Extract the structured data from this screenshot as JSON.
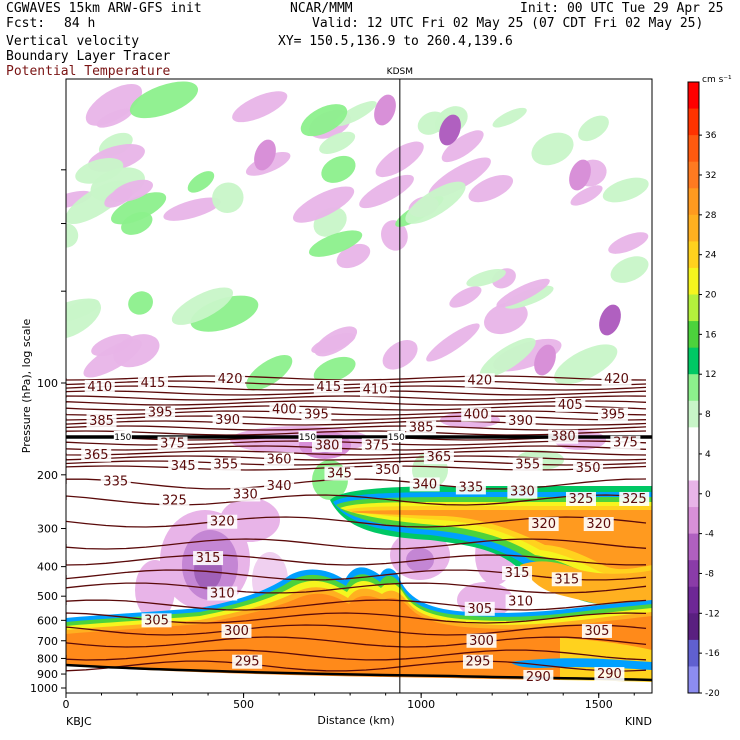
{
  "header": {
    "model": "CGWAVES 15km ARW-GFS init",
    "org": "NCAR/MMM",
    "init": "Init: 00 UTC Tue 29 Apr 25",
    "fcst_label": "Fcst:",
    "fcst_value": "84 h",
    "valid": "Valid: 12 UTC Fri 02 May 25 (07 CDT Fri 02 May 25)",
    "field1": "Vertical velocity",
    "field2": "Boundary Layer Tracer",
    "field3": "Potential Temperature",
    "xy": "XY= 150.5,136.9 to 260.4,139.6"
  },
  "colors": {
    "theta_contour": "#5a0a0a",
    "field3_text": "#7a1414",
    "bg": "#ffffff"
  },
  "chart_data": {
    "type": "heatmap",
    "marker_label": "KDSM",
    "marker_x_km": 940,
    "xlabel": "Distance (km)",
    "ylabel": "Pressure (hPa), log scale",
    "x_ticks": [
      0,
      500,
      1000,
      1500
    ],
    "x_tick_labels": [
      "0",
      "500",
      "1000",
      "1500"
    ],
    "x_range": [
      0,
      1650
    ],
    "y_ticks": [
      100,
      200,
      300,
      400,
      500,
      600,
      700,
      800,
      900,
      1000
    ],
    "y_tick_labels": [
      "100",
      "200",
      "300",
      "400",
      "500",
      "600",
      "700",
      "800",
      "900",
      "1000"
    ],
    "y_scale": "log",
    "left_station": "KBJC",
    "right_station": "KIND",
    "colorbar": {
      "units": "cm s⁻¹",
      "levels": [
        36,
        32,
        28,
        24,
        20,
        16,
        12,
        8,
        4,
        0,
        -4,
        -8,
        -12,
        -16,
        -20
      ],
      "colors": [
        "#ff0000",
        "#ff3300",
        "#ff5a10",
        "#ff7a20",
        "#ff9a1f",
        "#ffb020",
        "#ffd21e",
        "#f5f51e",
        "#b4f03c",
        "#4cd23c",
        "#00c864",
        "#8cf08c",
        "#c8f5c8",
        "#ffffff",
        "#ffffff",
        "#e8b4e8",
        "#d890d8",
        "#b060c0",
        "#8a3ca8",
        "#6e2896",
        "#5a2080",
        "#6060d0",
        "#8c8cf0"
      ]
    },
    "theta_labels": [
      {
        "v": "410",
        "x": 95,
        "p": 103
      },
      {
        "v": "415",
        "x": 245,
        "p": 100
      },
      {
        "v": "420",
        "x": 462,
        "p": 97
      },
      {
        "v": "415",
        "x": 740,
        "p": 103
      },
      {
        "v": "410",
        "x": 870,
        "p": 105
      },
      {
        "v": "420",
        "x": 1165,
        "p": 98
      },
      {
        "v": "420",
        "x": 1550,
        "p": 97
      },
      {
        "v": "385",
        "x": 100,
        "p": 133
      },
      {
        "v": "395",
        "x": 265,
        "p": 125
      },
      {
        "v": "400",
        "x": 615,
        "p": 122
      },
      {
        "v": "390",
        "x": 455,
        "p": 132
      },
      {
        "v": "395",
        "x": 705,
        "p": 127
      },
      {
        "v": "385",
        "x": 1000,
        "p": 140
      },
      {
        "v": "400",
        "x": 1155,
        "p": 127
      },
      {
        "v": "390",
        "x": 1280,
        "p": 133
      },
      {
        "v": "405",
        "x": 1420,
        "p": 118
      },
      {
        "v": "395",
        "x": 1540,
        "p": 127
      },
      {
        "v": "380",
        "x": 1400,
        "p": 150
      },
      {
        "v": "375",
        "x": 1575,
        "p": 157
      },
      {
        "v": "375",
        "x": 300,
        "p": 158
      },
      {
        "v": "380",
        "x": 735,
        "p": 160
      },
      {
        "v": "375",
        "x": 875,
        "p": 160
      },
      {
        "v": "365",
        "x": 85,
        "p": 172
      },
      {
        "v": "360",
        "x": 600,
        "p": 178
      },
      {
        "v": "365",
        "x": 1050,
        "p": 175
      },
      {
        "v": "355",
        "x": 1300,
        "p": 185
      },
      {
        "v": "350",
        "x": 1470,
        "p": 190
      },
      {
        "v": "345",
        "x": 330,
        "p": 187
      },
      {
        "v": "355",
        "x": 450,
        "p": 185
      },
      {
        "v": "345",
        "x": 770,
        "p": 198
      },
      {
        "v": "350",
        "x": 905,
        "p": 193
      },
      {
        "v": "335",
        "x": 140,
        "p": 210
      },
      {
        "v": "340",
        "x": 600,
        "p": 218
      },
      {
        "v": "340",
        "x": 1010,
        "p": 215
      },
      {
        "v": "335",
        "x": 1140,
        "p": 220
      },
      {
        "v": "330",
        "x": 505,
        "p": 232
      },
      {
        "v": "330",
        "x": 1285,
        "p": 227
      },
      {
        "v": "325",
        "x": 305,
        "p": 243
      },
      {
        "v": "325",
        "x": 1450,
        "p": 240
      },
      {
        "v": "325",
        "x": 1600,
        "p": 240
      },
      {
        "v": "320",
        "x": 440,
        "p": 285
      },
      {
        "v": "320",
        "x": 1345,
        "p": 290
      },
      {
        "v": "320",
        "x": 1500,
        "p": 290
      },
      {
        "v": "315",
        "x": 400,
        "p": 375
      },
      {
        "v": "315",
        "x": 1270,
        "p": 420
      },
      {
        "v": "315",
        "x": 1410,
        "p": 440
      },
      {
        "v": "310",
        "x": 440,
        "p": 490
      },
      {
        "v": "310",
        "x": 1280,
        "p": 520
      },
      {
        "v": "305",
        "x": 255,
        "p": 600
      },
      {
        "v": "305",
        "x": 1165,
        "p": 550
      },
      {
        "v": "305",
        "x": 1495,
        "p": 650
      },
      {
        "v": "300",
        "x": 480,
        "p": 650
      },
      {
        "v": "300",
        "x": 1170,
        "p": 700
      },
      {
        "v": "295",
        "x": 510,
        "p": 820
      },
      {
        "v": "295",
        "x": 1160,
        "p": 820
      },
      {
        "v": "290",
        "x": 1330,
        "p": 920
      },
      {
        "v": "290",
        "x": 1530,
        "p": 900
      }
    ],
    "tropopause_tags": [
      {
        "v": "150",
        "x": 160
      },
      {
        "v": "150",
        "x": 680
      },
      {
        "v": "150",
        "x": 930
      }
    ]
  }
}
